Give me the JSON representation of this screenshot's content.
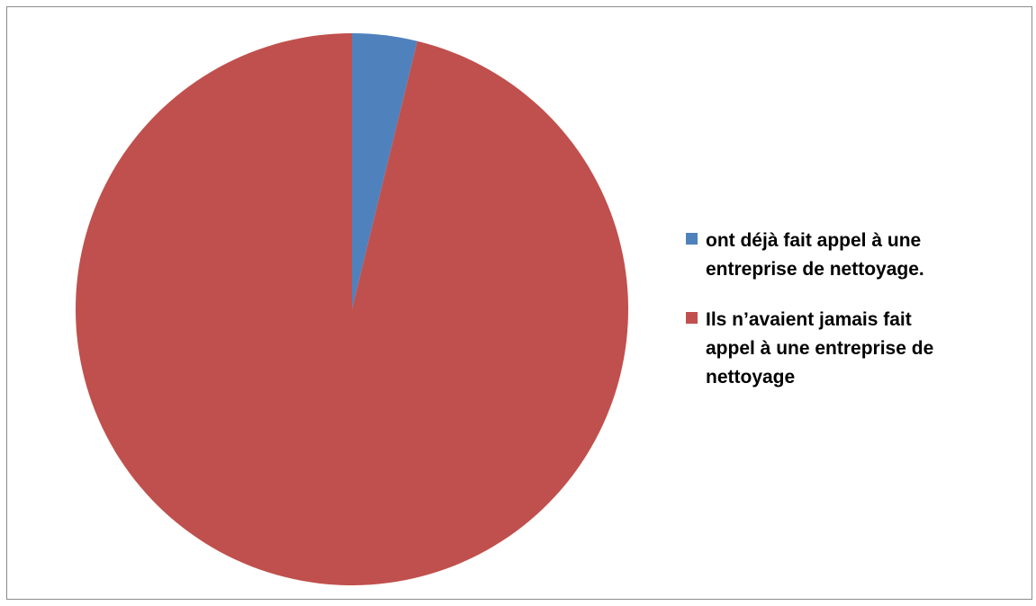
{
  "chart_data": {
    "type": "pie",
    "title": "",
    "start_angle_deg": 0,
    "direction": "clockwise",
    "slices": [
      {
        "label": " ont déjà fait appel à une\nentreprise de nettoyage.",
        "value": 3.8,
        "color": "#4F81BD"
      },
      {
        "label": "Ils n’avaient jamais fait\nappel à une entreprise de\nnettoyage",
        "value": 96.2,
        "color": "#C0504D"
      }
    ],
    "legend_position": "right"
  }
}
